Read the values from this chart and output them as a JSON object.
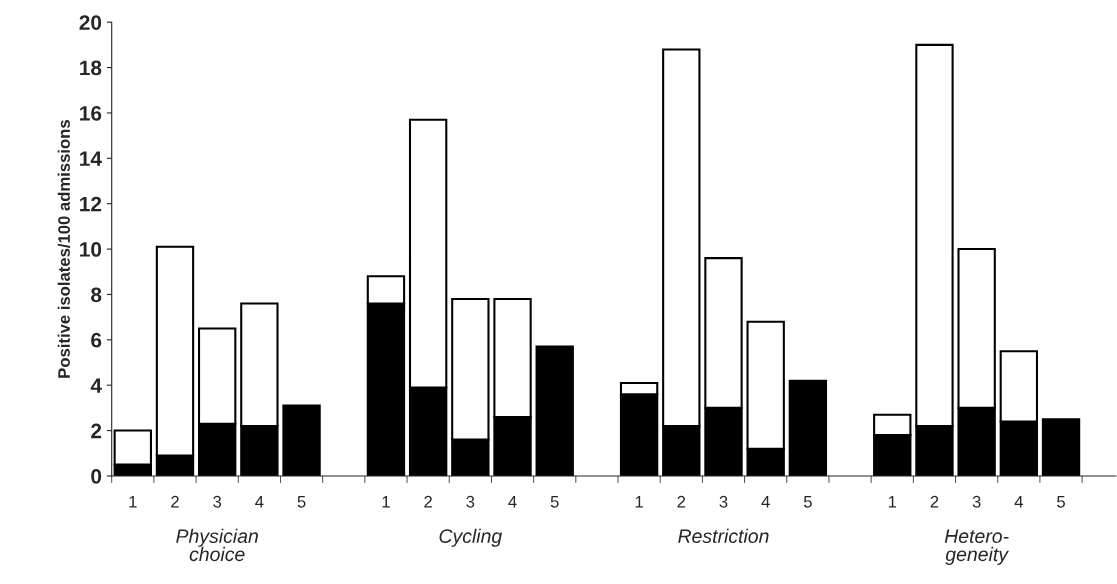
{
  "chart_data": {
    "type": "bar",
    "stacked": true,
    "ylabel": "Positive isolates/100 admissions",
    "categories": [
      "1",
      "2",
      "3",
      "4",
      "5",
      null,
      "1",
      "2",
      "3",
      "4",
      "5",
      null,
      "1",
      "2",
      "3",
      "4",
      "5",
      null,
      "1",
      "2",
      "3",
      "4",
      "5"
    ],
    "series": [
      {
        "color": "#000000",
        "values": [
          0.5,
          0.9,
          2.3,
          2.2,
          3.1,
          null,
          7.6,
          3.9,
          1.6,
          2.6,
          5.7,
          null,
          3.6,
          2.2,
          3.0,
          1.2,
          4.2,
          null,
          1.8,
          2.2,
          3.0,
          2.4,
          2.5
        ]
      },
      {
        "color": "#ffffff",
        "values": [
          1.5,
          9.2,
          4.2,
          5.4,
          null,
          null,
          1.2,
          11.8,
          6.2,
          5.2,
          null,
          null,
          0.5,
          16.6,
          6.6,
          5.6,
          null,
          null,
          0.9,
          16.8,
          7.0,
          3.1,
          null
        ]
      }
    ],
    "ylim": [
      0,
      20
    ],
    "yticks": [
      0,
      2,
      4,
      6,
      8,
      10,
      12,
      14,
      16,
      18,
      20
    ],
    "grid": false,
    "legend": false,
    "annotations": [
      "Physician\nchoice",
      "Cycling",
      "Restriction",
      "Hetero-\ngeneity"
    ]
  }
}
